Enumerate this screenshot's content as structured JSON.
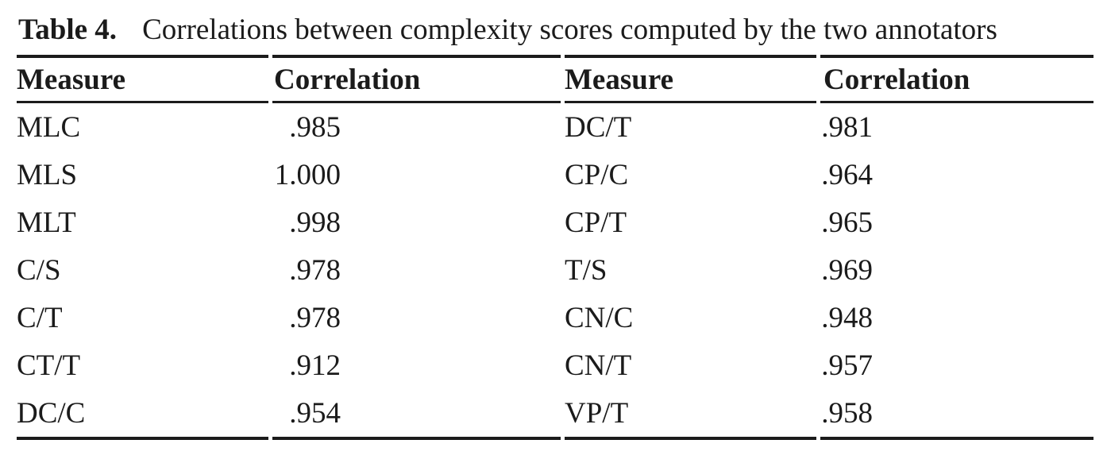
{
  "caption": {
    "label": "Table 4.",
    "text": "Correlations between complexity scores computed by the two annotators"
  },
  "table": {
    "columns": [
      "Measure",
      "Correlation",
      "Measure",
      "Correlation"
    ],
    "rows": [
      {
        "measure1": "MLC",
        "correlation1": ".985",
        "measure2": "DC/T",
        "correlation2": ".981"
      },
      {
        "measure1": "MLS",
        "correlation1": "1.000",
        "measure2": "CP/C",
        "correlation2": ".964"
      },
      {
        "measure1": "MLT",
        "correlation1": ".998",
        "measure2": "CP/T",
        "correlation2": ".965"
      },
      {
        "measure1": "C/S",
        "correlation1": ".978",
        "measure2": "T/S",
        "correlation2": ".969"
      },
      {
        "measure1": "C/T",
        "correlation1": ".978",
        "measure2": "CN/C",
        "correlation2": ".948"
      },
      {
        "measure1": "CT/T",
        "correlation1": ".912",
        "measure2": "CN/T",
        "correlation2": ".957"
      },
      {
        "measure1": "DC/C",
        "correlation1": ".954",
        "measure2": "VP/T",
        "correlation2": ".958"
      }
    ]
  },
  "colors": {
    "text": "#1b1b1b",
    "rule": "#1b1b1b",
    "background": "#ffffff"
  }
}
